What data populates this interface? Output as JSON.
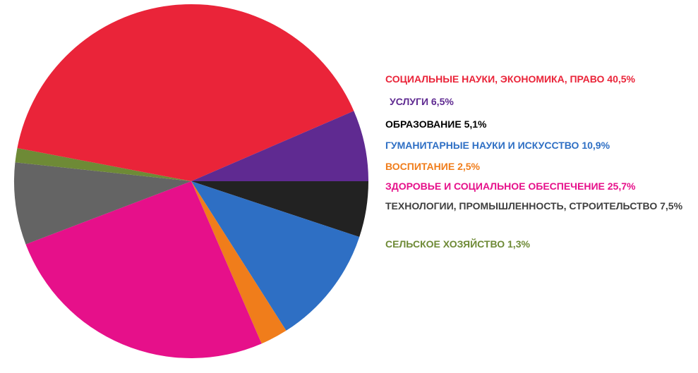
{
  "chart_data": {
    "type": "pie",
    "start_angle_deg": 0,
    "direction": "clockwise",
    "slices": [
      {
        "label": "ОБРАЗОВАНИЕ",
        "percent_text": "5,1%",
        "value": 5.1,
        "color": "#222222"
      },
      {
        "label": "ГУМАНИТАРНЫЕ НАУКИ И ИСКУССТВО",
        "percent_text": "10,9%",
        "value": 10.9,
        "color": "#2e6fc4"
      },
      {
        "label": "ВОСПИТАНИЕ",
        "percent_text": "2,5%",
        "value": 2.5,
        "color": "#f07d1b"
      },
      {
        "label": "ЗДОРОВЬЕ И СОЦИАЛЬНОЕ ОБЕСПЕЧЕНИЕ",
        "percent_text": "25,7%",
        "value": 25.7,
        "color": "#e6108a"
      },
      {
        "label": "ТЕХНОЛОГИИ, ПРОМЫШЛЕННОСТЬ, СТРОИТЕЛЬСТВО",
        "percent_text": "7,5%",
        "value": 7.5,
        "color": "#646464"
      },
      {
        "label": "СЕЛЬСКОЕ ХОЗЯЙСТВО",
        "percent_text": "1,3%",
        "value": 1.3,
        "color": "#6e8a36"
      },
      {
        "label": "СОЦИАЛЬНЫЕ НАУКИ, ЭКОНОМИКА, ПРАВО",
        "percent_text": "40,5%",
        "value": 40.5,
        "color": "#ea2439"
      },
      {
        "label": "УСЛУГИ",
        "percent_text": "6,5%",
        "value": 6.5,
        "color": "#5f2a91"
      }
    ],
    "legend": {
      "placement": "right",
      "items": [
        {
          "text": "СОЦИАЛЬНЫЕ НАУКИ, ЭКОНОМИКА, ПРАВО 40,5%",
          "color": "#ea2439"
        },
        {
          "text": "УСЛУГИ 6,5%",
          "color": "#5f2a91"
        },
        {
          "text": "ОБРАЗОВАНИЕ 5,1%",
          "color": "#000000"
        },
        {
          "text": "ГУМАНИТАРНЫЕ НАУКИ И ИСКУССТВО 10,9%",
          "color": "#2e6fc4"
        },
        {
          "text": "ВОСПИТАНИЕ 2,5%",
          "color": "#f07d1b"
        },
        {
          "text": "ЗДОРОВЬЕ И СОЦИАЛЬНОЕ ОБЕСПЕЧЕНИЕ 25,7%",
          "color": "#e6108a"
        },
        {
          "text": "ТЕХНОЛОГИИ, ПРОМЫШЛЕННОСТЬ, СТРОИТЕЛЬСТВО 7,5%",
          "color": "#404040"
        },
        {
          "text": "СЕЛЬСКОЕ ХОЗЯЙСТВО 1,3%",
          "color": "#6e8a36"
        }
      ]
    }
  }
}
